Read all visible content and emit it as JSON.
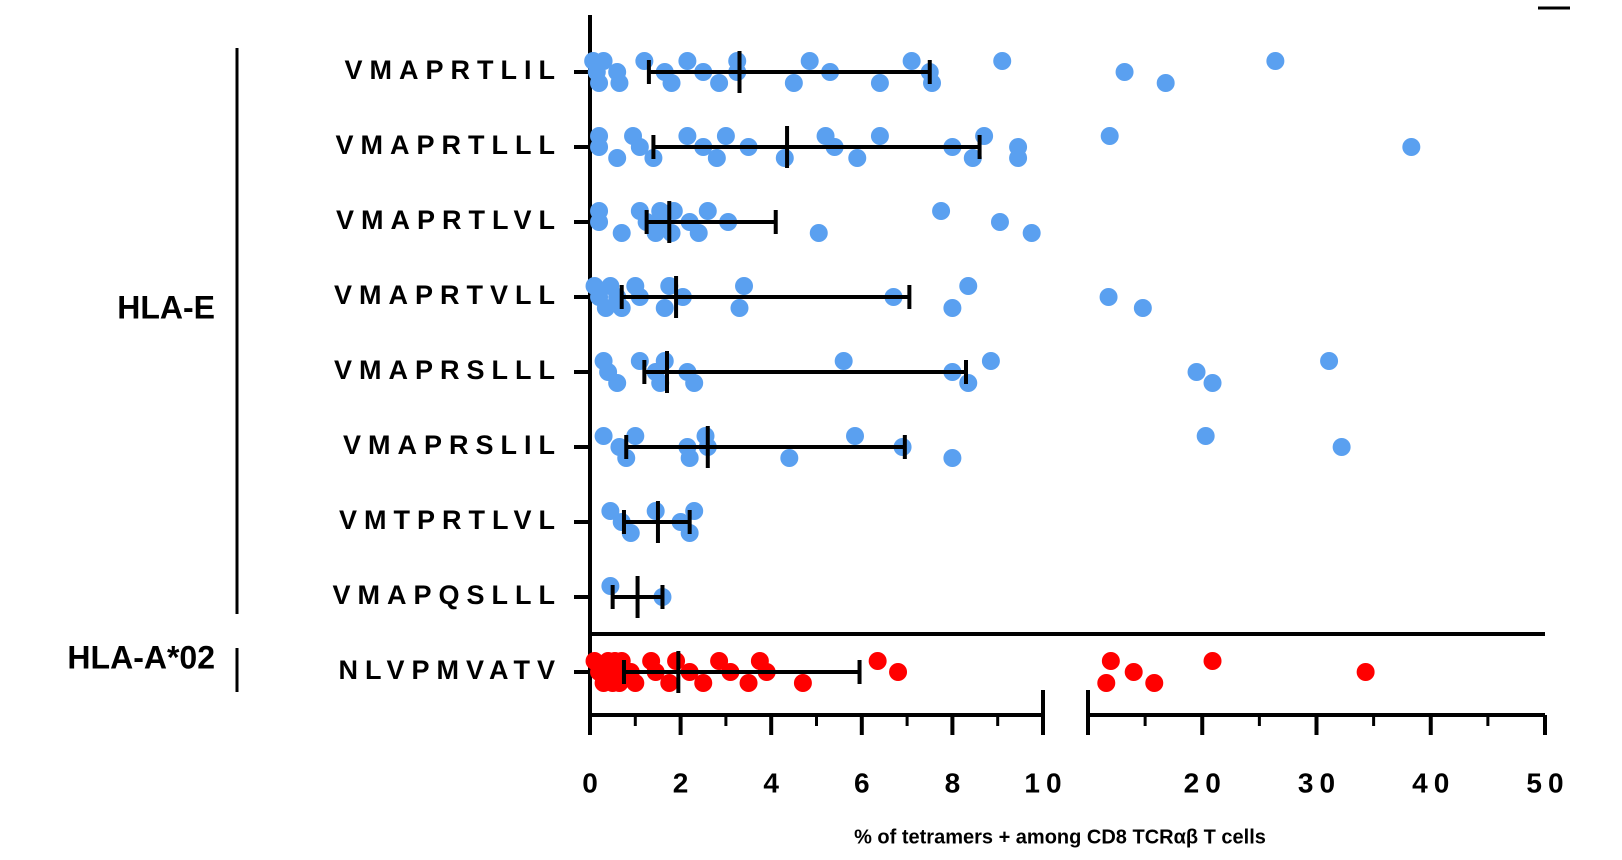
{
  "chart_data": {
    "type": "dot_plot",
    "x_label": "% of tetramers + among CD8 TCRαβ T cells",
    "axes": [
      {
        "xlim": [
          0,
          10
        ],
        "xticks": [
          0,
          2,
          4,
          6,
          8,
          10
        ],
        "xminorticks": [
          1,
          3,
          5,
          7,
          9
        ]
      },
      {
        "xlim": [
          10,
          50
        ],
        "xticks": [
          20,
          30,
          40,
          50
        ],
        "xminorticks": [
          15,
          25,
          35,
          45
        ]
      }
    ],
    "groups": [
      {
        "label": "HLA-E",
        "rows": [
          {
            "category": "VMAPRTLIL",
            "color": "#5aa0f0",
            "median": 3.3,
            "q1": 1.3,
            "q3": 7.5,
            "values": [
              0.07,
              0.15,
              0.2,
              0.3,
              0.6,
              0.65,
              1.2,
              1.65,
              1.8,
              2.15,
              2.5,
              2.85,
              3.25,
              3.25,
              4.5,
              4.85,
              5.3,
              6.4,
              7.1,
              7.5,
              7.55,
              9.1,
              13.2,
              16.8,
              26.4
            ]
          },
          {
            "category": "VMAPRTLLL",
            "color": "#5aa0f0",
            "median": 4.35,
            "q1": 1.4,
            "q3": 8.6,
            "values": [
              0.2,
              0.2,
              0.6,
              0.95,
              1.1,
              1.4,
              2.15,
              2.5,
              2.8,
              3.0,
              3.5,
              4.3,
              5.2,
              5.4,
              5.9,
              6.4,
              8.0,
              8.45,
              8.7,
              9.45,
              9.45,
              11.9,
              38.3
            ]
          },
          {
            "category": "VMAPRTLVL",
            "color": "#5aa0f0",
            "median": 1.75,
            "q1": 1.25,
            "q3": 4.1,
            "values": [
              0.2,
              0.2,
              0.7,
              1.1,
              1.25,
              1.45,
              1.55,
              1.6,
              1.8,
              1.85,
              2.2,
              2.4,
              2.6,
              3.05,
              5.05,
              7.75,
              9.05,
              9.75
            ]
          },
          {
            "category": "VMAPRTVLL",
            "color": "#5aa0f0",
            "median": 1.9,
            "q1": 0.7,
            "q3": 7.05,
            "values": [
              0.1,
              0.2,
              0.35,
              0.45,
              0.6,
              0.7,
              1.0,
              1.1,
              1.65,
              1.75,
              2.05,
              3.3,
              3.4,
              6.7,
              8.0,
              8.35,
              11.8,
              14.8
            ]
          },
          {
            "category": "VMAPRSLLL",
            "color": "#5aa0f0",
            "median": 1.7,
            "q1": 1.2,
            "q3": 8.3,
            "values": [
              0.3,
              0.4,
              0.6,
              1.1,
              1.45,
              1.55,
              1.65,
              2.15,
              2.3,
              5.6,
              8.0,
              8.35,
              8.85,
              19.5,
              20.9,
              31.1
            ]
          },
          {
            "category": "VMAPRSLIL",
            "color": "#5aa0f0",
            "median": 2.6,
            "q1": 0.8,
            "q3": 6.95,
            "values": [
              0.3,
              0.65,
              0.8,
              1.0,
              2.15,
              2.2,
              2.55,
              2.6,
              4.4,
              5.85,
              6.9,
              8.0,
              20.3,
              32.2
            ]
          },
          {
            "category": "VMTPRTLVL",
            "color": "#5aa0f0",
            "median": 1.5,
            "q1": 0.75,
            "q3": 2.2,
            "values": [
              0.45,
              0.7,
              0.9,
              1.45,
              2.0,
              2.2,
              2.3
            ]
          },
          {
            "category": "VMAPQSLLL",
            "color": "#5aa0f0",
            "median": 1.05,
            "q1": 0.5,
            "q3": 1.6,
            "values": [
              0.45,
              1.6
            ]
          }
        ]
      },
      {
        "label": "HLA-A*02",
        "rows": [
          {
            "category": "NLVPMVATV",
            "color": "#ff0000",
            "median": 1.95,
            "q1": 0.75,
            "q3": 5.95,
            "values": [
              0.1,
              0.2,
              0.3,
              0.4,
              0.45,
              0.5,
              0.55,
              0.6,
              0.65,
              0.7,
              0.9,
              1.0,
              1.35,
              1.45,
              1.75,
              1.9,
              2.2,
              2.5,
              2.85,
              3.1,
              3.5,
              3.75,
              3.9,
              4.7,
              6.35,
              6.8,
              11.6,
              12.0,
              14.0,
              15.8,
              20.9,
              34.3
            ]
          }
        ]
      }
    ]
  }
}
